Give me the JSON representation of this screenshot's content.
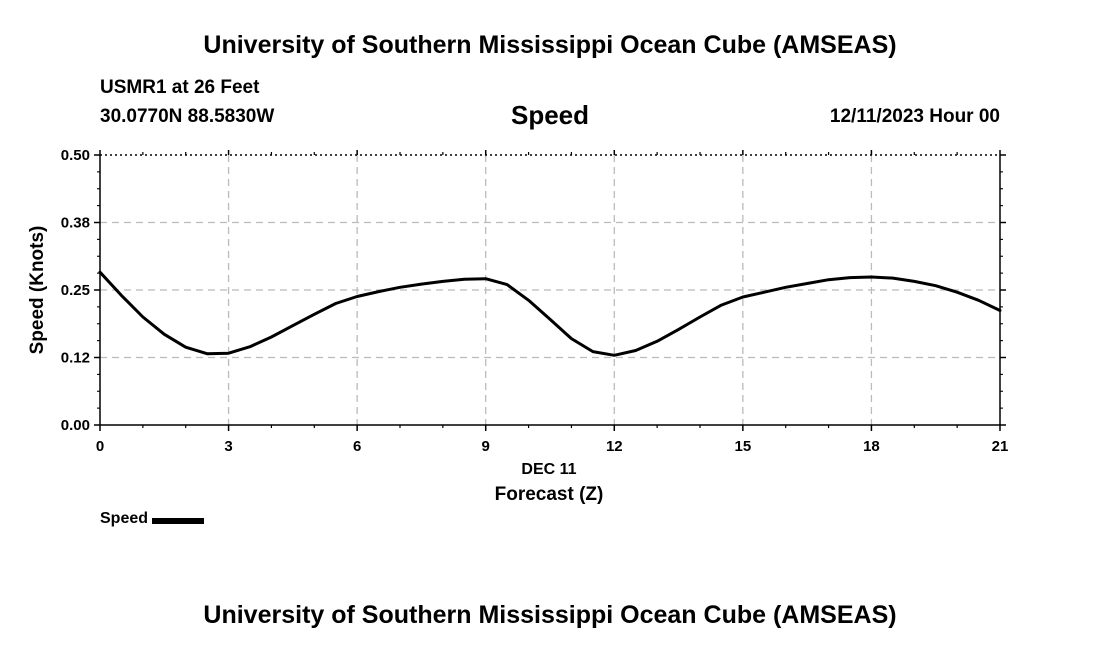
{
  "header": {
    "title_top": "University of Southern Mississippi Ocean Cube (AMSEAS)",
    "station": "USMR1 at 26 Feet",
    "coords": "30.0770N  88.5830W",
    "variable": "Speed",
    "datetime": "12/11/2023 Hour 00"
  },
  "footer": {
    "title_bottom": "University of Southern Mississippi Ocean Cube (AMSEAS)"
  },
  "legend": {
    "label": "Speed"
  },
  "colors": {
    "line": "#000000",
    "grid": "#bbbbbb"
  },
  "chart_data": {
    "type": "line",
    "title": "Speed",
    "xlabel": "Forecast (Z)",
    "xsublabel": "DEC 11",
    "ylabel": "Speed (Knots)",
    "xlim": [
      0,
      21
    ],
    "ylim": [
      0,
      0.5
    ],
    "xticks": [
      0,
      3,
      6,
      9,
      12,
      15,
      18,
      21
    ],
    "xtick_labels": [
      "0",
      "3",
      "6",
      "9",
      "12",
      "15",
      "18",
      "21"
    ],
    "yticks": [
      0,
      0.125,
      0.25,
      0.375,
      0.5
    ],
    "ytick_labels": [
      "0.00",
      "0.12",
      "0.25",
      "0.38",
      "0.50"
    ],
    "grid": true,
    "legend_position": "bottom-left",
    "series": [
      {
        "name": "Speed",
        "x": [
          0,
          0.5,
          1,
          1.5,
          2,
          2.5,
          3,
          3.5,
          4,
          4.5,
          5,
          5.5,
          6,
          6.5,
          7,
          7.5,
          8,
          8.5,
          9,
          9.5,
          10,
          10.5,
          11,
          11.5,
          12,
          12.5,
          13,
          13.5,
          14,
          14.5,
          15,
          15.5,
          16,
          16.5,
          17,
          17.5,
          18,
          18.5,
          19,
          19.5,
          20,
          20.5,
          21
        ],
        "y": [
          0.283,
          0.24,
          0.2,
          0.168,
          0.144,
          0.132,
          0.133,
          0.145,
          0.163,
          0.184,
          0.205,
          0.225,
          0.238,
          0.247,
          0.255,
          0.261,
          0.266,
          0.27,
          0.271,
          0.26,
          0.231,
          0.196,
          0.16,
          0.136,
          0.129,
          0.138,
          0.155,
          0.177,
          0.2,
          0.222,
          0.237,
          0.246,
          0.255,
          0.262,
          0.269,
          0.273,
          0.274,
          0.272,
          0.266,
          0.258,
          0.246,
          0.231,
          0.212
        ]
      }
    ]
  }
}
